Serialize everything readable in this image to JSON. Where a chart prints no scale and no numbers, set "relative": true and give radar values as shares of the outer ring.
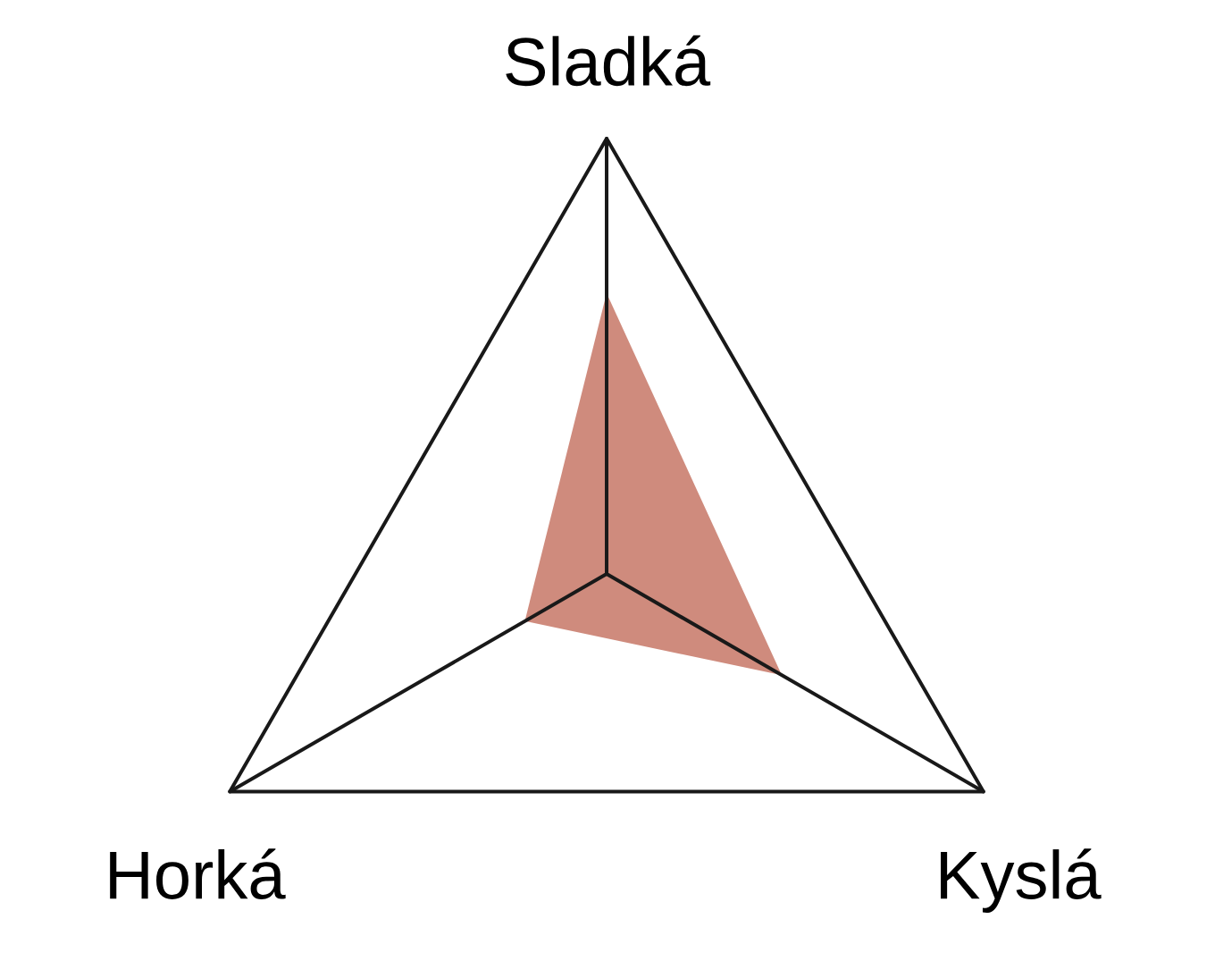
{
  "chart_data": {
    "type": "radar",
    "relative": true,
    "categories": [
      "Sladká",
      "Kyslá",
      "Horká"
    ],
    "series": [
      {
        "color": "#cf8b7d",
        "values": [
          0.645,
          0.465,
          0.217
        ]
      }
    ]
  }
}
